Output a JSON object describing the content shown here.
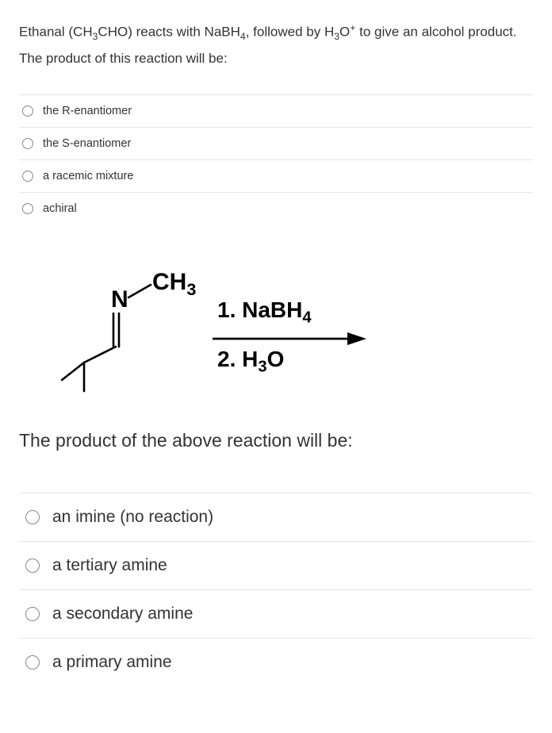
{
  "q1": {
    "prompt_html": "Ethanal (CH<sub>3</sub>CHO) reacts with NaBH<sub>4</sub>, followed by H<sub>3</sub>O<sup>+</sup> to give an alcohol product. The product of this reaction will be:",
    "options": [
      "the R-enantiomer",
      "the S-enantiomer",
      "a racemic mixture",
      "achiral"
    ]
  },
  "scheme": {
    "reagent1_html": "1. NaBH<sub>4</sub>",
    "reagent2_html": "2. H<sub>3</sub>O",
    "n_label": "N",
    "ch3_label_html": "CH<sub>3</sub>",
    "colors": {
      "line": "#000000",
      "text": "#000000"
    }
  },
  "q2": {
    "prompt": "The product of the above reaction will be:",
    "options": [
      "an imine (no reaction)",
      "a tertiary amine",
      "a secondary amine",
      "a primary amine"
    ]
  }
}
